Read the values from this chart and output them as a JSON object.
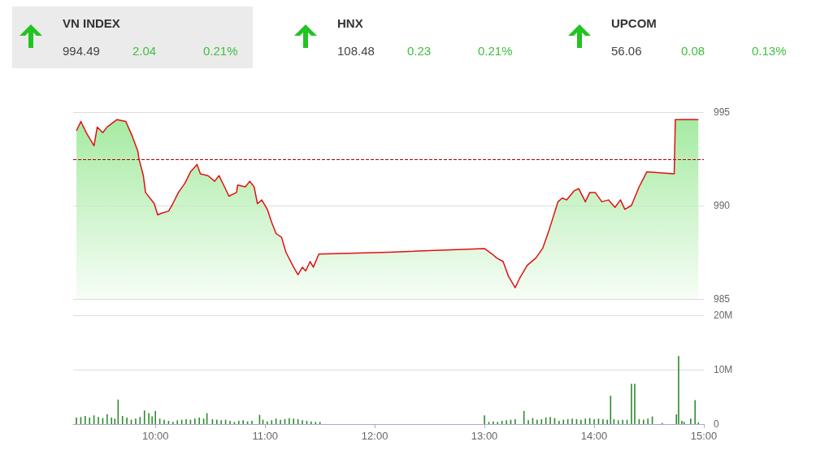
{
  "chart_data": [
    {
      "type": "other",
      "annotations": [
        "VN INDEX",
        "994.49",
        "2.04",
        "0.21%",
        "HNX",
        "108.48",
        "0.23",
        "0.21%",
        "UPCOM",
        "56.06",
        "0.08",
        "0.13%"
      ]
    },
    {
      "type": "area",
      "x": [
        9.28,
        9.32,
        9.37,
        9.44,
        9.47,
        9.52,
        9.56,
        9.65,
        9.73,
        9.79,
        9.84,
        9.85,
        9.89,
        9.91,
        9.99,
        10.02,
        10.06,
        10.12,
        10.15,
        10.21,
        10.27,
        10.32,
        10.38,
        10.41,
        10.48,
        10.54,
        10.58,
        10.63,
        10.67,
        10.74,
        10.75,
        10.82,
        10.86,
        10.9,
        10.93,
        10.97,
        11.02,
        11.06,
        11.1,
        11.15,
        11.19,
        11.26,
        11.3,
        11.34,
        11.37,
        11.41,
        11.44,
        11.49,
        12.13,
        13.0,
        13.07,
        13.11,
        13.17,
        13.22,
        13.28,
        13.32,
        13.39,
        13.47,
        13.53,
        13.59,
        13.67,
        13.71,
        13.75,
        13.82,
        13.86,
        13.92,
        13.96,
        14.01,
        14.07,
        14.13,
        14.19,
        14.24,
        14.28,
        14.34,
        14.41,
        14.48,
        14.73,
        14.74,
        14.95
      ],
      "series": [
        {
          "color": "#e01010",
          "values": [
            994.0,
            994.5,
            993.9,
            993.2,
            994.2,
            993.9,
            994.2,
            994.6,
            994.5,
            993.7,
            992.9,
            992.5,
            991.6,
            990.7,
            990.1,
            989.5,
            989.6,
            989.7,
            990.0,
            990.7,
            991.2,
            991.8,
            992.2,
            991.7,
            991.6,
            991.3,
            991.6,
            991.0,
            990.5,
            990.7,
            991.1,
            991.0,
            991.3,
            991.0,
            990.1,
            990.3,
            989.8,
            989.1,
            988.5,
            988.3,
            987.5,
            986.7,
            986.3,
            986.7,
            986.5,
            987.0,
            986.7,
            987.4,
            987.5,
            987.7,
            987.4,
            987.2,
            987.0,
            986.2,
            985.6,
            986.1,
            986.8,
            987.2,
            987.7,
            988.7,
            990.2,
            990.4,
            990.3,
            990.8,
            990.9,
            990.2,
            990.7,
            990.7,
            990.2,
            990.3,
            989.9,
            990.3,
            989.8,
            990.0,
            991.0,
            991.8,
            991.7,
            994.6,
            994.6
          ]
        }
      ],
      "xlim": [
        9.25,
        15
      ],
      "ylim": [
        985,
        995
      ],
      "yticks": [
        985,
        990,
        995
      ],
      "grid": "y",
      "tick_labels": "y",
      "ref_lines": [
        {
          "axis": "y",
          "value": 992.45,
          "color": "#b00000",
          "line_style": "dashed"
        }
      ]
    },
    {
      "type": "bar",
      "x": [
        9.28,
        9.32,
        9.36,
        9.4,
        9.44,
        9.48,
        9.52,
        9.56,
        9.6,
        9.63,
        9.66,
        9.7,
        9.74,
        9.78,
        9.82,
        9.86,
        9.9,
        9.94,
        9.97,
        10.0,
        10.04,
        10.08,
        10.12,
        10.16,
        10.2,
        10.24,
        10.28,
        10.32,
        10.36,
        10.4,
        10.44,
        10.47,
        10.52,
        10.56,
        10.6,
        10.64,
        10.68,
        10.72,
        10.76,
        10.8,
        10.84,
        10.88,
        10.95,
        10.98,
        11.02,
        11.06,
        11.1,
        11.14,
        11.18,
        11.22,
        11.26,
        11.3,
        11.34,
        11.38,
        11.42,
        11.46,
        11.5,
        13.0,
        13.04,
        13.08,
        13.12,
        13.16,
        13.2,
        13.24,
        13.28,
        13.36,
        13.4,
        13.44,
        13.48,
        13.52,
        13.56,
        13.6,
        13.64,
        13.68,
        13.72,
        13.76,
        13.8,
        13.84,
        13.88,
        13.92,
        13.96,
        14.0,
        14.04,
        14.08,
        14.12,
        14.15,
        14.18,
        14.22,
        14.26,
        14.3,
        14.34,
        14.37,
        14.41,
        14.45,
        14.49,
        14.53,
        14.62,
        14.75,
        14.77,
        14.8,
        14.82,
        14.88,
        14.92,
        14.95
      ],
      "series": [
        {
          "color": "#2e8b2e",
          "values": [
            1.2,
            1.3,
            1.5,
            1.2,
            1.6,
            1.3,
            1.1,
            1.8,
            1.2,
            1.0,
            4.5,
            1.5,
            1.2,
            0.8,
            1.0,
            1.3,
            2.5,
            2.0,
            1.4,
            2.4,
            1.0,
            0.8,
            0.6,
            0.4,
            0.7,
            0.8,
            0.9,
            0.8,
            1.0,
            1.2,
            1.0,
            2.0,
            0.9,
            0.8,
            0.7,
            0.8,
            0.6,
            0.4,
            0.6,
            0.7,
            0.5,
            0.6,
            1.7,
            0.8,
            0.5,
            0.7,
            1.0,
            0.8,
            0.9,
            1.1,
            1.0,
            0.9,
            0.7,
            0.6,
            0.5,
            0.4,
            0.4,
            1.6,
            0.4,
            0.5,
            0.4,
            0.6,
            0.7,
            0.8,
            0.9,
            2.4,
            0.7,
            1.1,
            0.8,
            0.9,
            1.2,
            1.3,
            1.1,
            0.6,
            0.8,
            0.9,
            1.0,
            0.9,
            0.8,
            1.0,
            1.1,
            0.9,
            1.0,
            0.9,
            0.8,
            5.2,
            0.9,
            0.7,
            0.8,
            0.8,
            7.4,
            7.4,
            0.9,
            0.8,
            1.0,
            1.4,
            0.2,
            1.8,
            12.5,
            0.6,
            0.4,
            1.0,
            4.4,
            0.3
          ]
        }
      ],
      "xlim": [
        9.25,
        15
      ],
      "xticks": [
        {
          "value": 10,
          "label": "10:00"
        },
        {
          "value": 11,
          "label": "11:00"
        },
        {
          "value": 12,
          "label": "12:00"
        },
        {
          "value": 13,
          "label": "13:00"
        },
        {
          "value": 14,
          "label": "14:00"
        },
        {
          "value": 15,
          "label": "15:00"
        }
      ],
      "ylim": [
        0,
        20
      ],
      "yticks": [
        0,
        {
          "value": 10,
          "label": "10M"
        },
        {
          "value": 20,
          "label": "20M"
        }
      ],
      "grid": "y"
    }
  ]
}
